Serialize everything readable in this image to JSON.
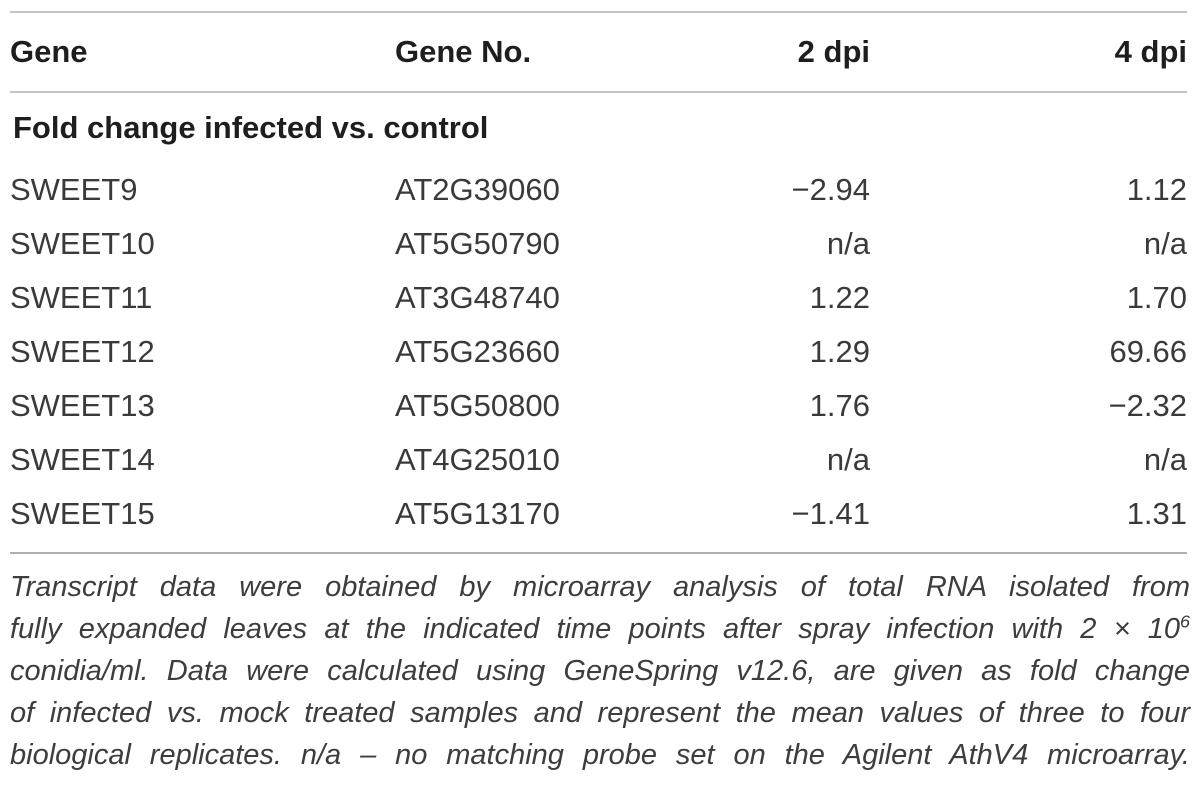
{
  "table": {
    "columns": [
      "Gene",
      "Gene No.",
      "2 dpi",
      "4 dpi"
    ],
    "section_header": "Fold change infected vs. control",
    "rows": [
      {
        "gene": "SWEET9",
        "gene_no": "AT2G39060",
        "dpi2": "−2.94",
        "dpi4": "1.12"
      },
      {
        "gene": "SWEET10",
        "gene_no": "AT5G50790",
        "dpi2": "n/a",
        "dpi4": "n/a"
      },
      {
        "gene": "SWEET11",
        "gene_no": "AT3G48740",
        "dpi2": "1.22",
        "dpi4": "1.70"
      },
      {
        "gene": "SWEET12",
        "gene_no": "AT5G23660",
        "dpi2": "1.29",
        "dpi4": "69.66"
      },
      {
        "gene": "SWEET13",
        "gene_no": "AT5G50800",
        "dpi2": "1.76",
        "dpi4": "−2.32"
      },
      {
        "gene": "SWEET14",
        "gene_no": "AT4G25010",
        "dpi2": "n/a",
        "dpi4": "n/a"
      },
      {
        "gene": "SWEET15",
        "gene_no": "AT5G13170",
        "dpi2": "−1.41",
        "dpi4": "1.31"
      }
    ]
  },
  "footnote": {
    "lines": [
      {
        "text": "Transcript data were obtained by microarray analysis of total RNA isolated from",
        "sup": ""
      },
      {
        "text": "fully expanded leaves at the indicated time points after spray infection with 2 × 10",
        "sup": "6"
      },
      {
        "text": "conidia/ml. Data were calculated using GeneSpring v12.6, are given as fold change",
        "sup": ""
      },
      {
        "text": "of infected vs. mock treated samples and represent the mean values of three to four",
        "sup": ""
      },
      {
        "text": "biological replicates. n/a – no matching probe set on the Agilent AthV4 microarray.",
        "sup": ""
      }
    ]
  },
  "colors": {
    "rule_gray": "#c4c4c4",
    "bottom_rule_gray": "#aeaeae",
    "header_text": "#1e1e1e",
    "body_text": "#3a3a3a",
    "footnote_text": "#3d3d3d"
  }
}
